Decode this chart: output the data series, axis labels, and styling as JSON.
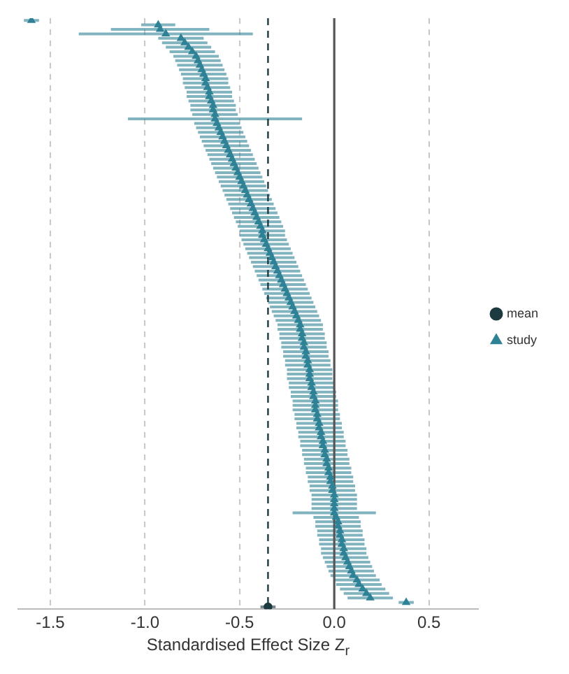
{
  "chart_data": {
    "type": "scatter",
    "orientation": "horizontal",
    "xlabel": "Standardised Effect Size Z$_{r}$",
    "categories": [
      null,
      null,
      null,
      null,
      null,
      null,
      null,
      null,
      null,
      null,
      null,
      null,
      null,
      null,
      null,
      null,
      null,
      null,
      null,
      null,
      null,
      null,
      null,
      null,
      null,
      null,
      null,
      null,
      null,
      null,
      null,
      null,
      null,
      null,
      null,
      null,
      null,
      null,
      null,
      null,
      null,
      null,
      null,
      null,
      null,
      null,
      null,
      null,
      null,
      null,
      null,
      null,
      null,
      null,
      null,
      null,
      null,
      null,
      null,
      null,
      null,
      null,
      null,
      null,
      null,
      null,
      null,
      null,
      null,
      null,
      null,
      null,
      null,
      null,
      null,
      null,
      null,
      null,
      null,
      null,
      null,
      null,
      null,
      null,
      null,
      null,
      null,
      null,
      null,
      null,
      null,
      null,
      null,
      null,
      null,
      null,
      null,
      null,
      null,
      null,
      null,
      null,
      null,
      null,
      null,
      null,
      null,
      null,
      null,
      null,
      null,
      null,
      null,
      null,
      null,
      null,
      null,
      null,
      null,
      null,
      null,
      null,
      null,
      null,
      null,
      null,
      null,
      null,
      null,
      null,
      null,
      null
    ],
    "series": [
      {
        "name": "mean",
        "color": "#1d3a40",
        "marker": "circle",
        "values": [
          null,
          null,
          null,
          null,
          null,
          null,
          null,
          null,
          null,
          null,
          null,
          null,
          null,
          null,
          null,
          null,
          null,
          null,
          null,
          null,
          null,
          null,
          null,
          null,
          null,
          null,
          null,
          null,
          null,
          null,
          null,
          null,
          null,
          null,
          null,
          null,
          null,
          null,
          null,
          null,
          null,
          null,
          null,
          null,
          null,
          null,
          null,
          null,
          null,
          null,
          null,
          null,
          null,
          null,
          null,
          null,
          null,
          null,
          null,
          null,
          null,
          null,
          null,
          null,
          null,
          null,
          null,
          null,
          null,
          null,
          null,
          null,
          null,
          null,
          null,
          null,
          null,
          null,
          null,
          null,
          null,
          null,
          null,
          null,
          null,
          null,
          null,
          null,
          null,
          null,
          null,
          null,
          null,
          null,
          null,
          null,
          null,
          null,
          null,
          null,
          null,
          null,
          null,
          null,
          null,
          null,
          null,
          null,
          null,
          null,
          null,
          null,
          null,
          null,
          null,
          null,
          null,
          null,
          null,
          null,
          null,
          null,
          null,
          null,
          null,
          null,
          null,
          null,
          null,
          null,
          null,
          -0.35
        ],
        "errors": [
          null,
          null,
          null,
          null,
          null,
          null,
          null,
          null,
          null,
          null,
          null,
          null,
          null,
          null,
          null,
          null,
          null,
          null,
          null,
          null,
          null,
          null,
          null,
          null,
          null,
          null,
          null,
          null,
          null,
          null,
          null,
          null,
          null,
          null,
          null,
          null,
          null,
          null,
          null,
          null,
          null,
          null,
          null,
          null,
          null,
          null,
          null,
          null,
          null,
          null,
          null,
          null,
          null,
          null,
          null,
          null,
          null,
          null,
          null,
          null,
          null,
          null,
          null,
          null,
          null,
          null,
          null,
          null,
          null,
          null,
          null,
          null,
          null,
          null,
          null,
          null,
          null,
          null,
          null,
          null,
          null,
          null,
          null,
          null,
          null,
          null,
          null,
          null,
          null,
          null,
          null,
          null,
          null,
          null,
          null,
          null,
          null,
          null,
          null,
          null,
          null,
          null,
          null,
          null,
          null,
          null,
          null,
          null,
          null,
          null,
          null,
          null,
          null,
          null,
          null,
          null,
          null,
          null,
          null,
          null,
          null,
          null,
          null,
          null,
          null,
          null,
          null,
          null,
          null,
          null,
          null,
          0.04
        ]
      },
      {
        "name": "study",
        "color": "#2f8296",
        "marker": "triangle",
        "values": [
          -1.6,
          -0.93,
          -0.92,
          -0.89,
          -0.81,
          -0.79,
          -0.77,
          -0.75,
          -0.73,
          -0.72,
          -0.71,
          -0.7,
          -0.69,
          -0.68,
          -0.68,
          -0.67,
          -0.66,
          -0.66,
          -0.65,
          -0.64,
          -0.64,
          -0.63,
          -0.63,
          -0.62,
          -0.61,
          -0.6,
          -0.59,
          -0.58,
          -0.57,
          -0.56,
          -0.55,
          -0.54,
          -0.53,
          -0.52,
          -0.51,
          -0.5,
          -0.49,
          -0.48,
          -0.47,
          -0.46,
          -0.45,
          -0.44,
          -0.43,
          -0.42,
          -0.41,
          -0.4,
          -0.39,
          -0.38,
          -0.38,
          -0.37,
          -0.36,
          -0.35,
          -0.34,
          -0.33,
          -0.32,
          -0.31,
          -0.3,
          -0.29,
          -0.28,
          -0.27,
          -0.26,
          -0.25,
          -0.24,
          -0.23,
          -0.22,
          -0.21,
          -0.2,
          -0.19,
          -0.18,
          -0.18,
          -0.17,
          -0.17,
          -0.16,
          -0.16,
          -0.15,
          -0.15,
          -0.14,
          -0.14,
          -0.13,
          -0.13,
          -0.13,
          -0.12,
          -0.12,
          -0.11,
          -0.11,
          -0.1,
          -0.1,
          -0.1,
          -0.09,
          -0.09,
          -0.08,
          -0.08,
          -0.07,
          -0.07,
          -0.06,
          -0.06,
          -0.05,
          -0.05,
          -0.04,
          -0.04,
          -0.03,
          -0.03,
          -0.02,
          -0.02,
          -0.01,
          -0.01,
          0,
          0,
          0,
          0,
          0,
          0.01,
          0.02,
          0.02,
          0.03,
          0.03,
          0.04,
          0.04,
          0.05,
          0.05,
          0.06,
          0.07,
          0.08,
          0.09,
          0.1,
          0.12,
          0.13,
          0.15,
          0.17,
          0.19,
          0.38,
          null
        ],
        "errors": [
          0.04,
          0.09,
          0.26,
          0.46,
          0.12,
          0.12,
          0.12,
          0.12,
          0.12,
          0.12,
          0.12,
          0.12,
          0.12,
          0.12,
          0.12,
          0.12,
          0.12,
          0.12,
          0.12,
          0.12,
          0.12,
          0.12,
          0.46,
          0.12,
          0.12,
          0.12,
          0.12,
          0.12,
          0.12,
          0.12,
          0.12,
          0.12,
          0.12,
          0.12,
          0.12,
          0.12,
          0.12,
          0.12,
          0.12,
          0.12,
          0.12,
          0.12,
          0.12,
          0.12,
          0.12,
          0.12,
          0.12,
          0.12,
          0.12,
          0.12,
          0.12,
          0.12,
          0.12,
          0.12,
          0.12,
          0.12,
          0.12,
          0.12,
          0.12,
          0.12,
          0.12,
          0.12,
          0.12,
          0.12,
          0.12,
          0.12,
          0.12,
          0.12,
          0.12,
          0.12,
          0.12,
          0.12,
          0.12,
          0.12,
          0.12,
          0.12,
          0.12,
          0.12,
          0.12,
          0.12,
          0.12,
          0.12,
          0.12,
          0.12,
          0.12,
          0.12,
          0.12,
          0.12,
          0.12,
          0.12,
          0.12,
          0.12,
          0.12,
          0.12,
          0.12,
          0.12,
          0.12,
          0.12,
          0.12,
          0.12,
          0.12,
          0.12,
          0.12,
          0.12,
          0.12,
          0.12,
          0.12,
          0.12,
          0.12,
          0.12,
          0.22,
          0.12,
          0.12,
          0.12,
          0.12,
          0.12,
          0.12,
          0.12,
          0.12,
          0.12,
          0.12,
          0.12,
          0.12,
          0.12,
          0.12,
          0.12,
          0.12,
          0.12,
          0.12,
          0.12,
          0.04,
          null
        ]
      }
    ],
    "xlim": [
      -1.67,
      0.76
    ],
    "xticks": [
      -1.5,
      {
        "value": -1,
        "label": "-1.0"
      },
      -0.5,
      {
        "value": 0,
        "label": "0.0"
      },
      0.5
    ],
    "tick_labels": "x",
    "grid": "x",
    "legend": "right",
    "ref_lines": [
      {
        "axis": "x",
        "value": 0,
        "color": "#555555",
        "line_style": "solid"
      },
      {
        "axis": "x",
        "value": -0.35,
        "color": "#1d3a40",
        "line_style": "dashed"
      }
    ]
  }
}
